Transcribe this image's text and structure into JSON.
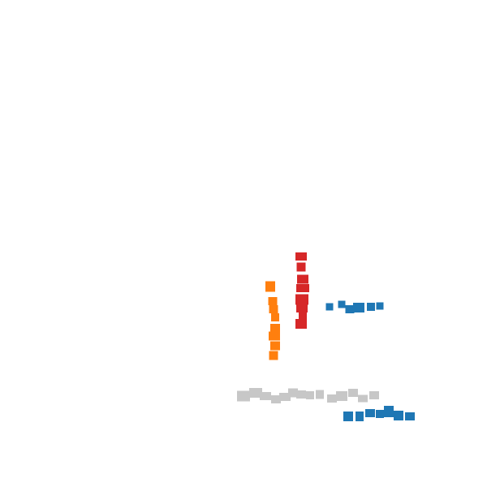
{
  "colors": {
    "background": "#ffffff",
    "red": "#d62728",
    "orange": "#ff7f0e",
    "blue": "#1f77b4",
    "gray": "#c7c7c7"
  },
  "groups": [
    {
      "name": "red-vertical-cluster",
      "color_key": "red"
    },
    {
      "name": "orange-vertical-cluster",
      "color_key": "orange"
    },
    {
      "name": "blue-upper-cluster",
      "color_key": "blue"
    },
    {
      "name": "gray-horizontal-cluster",
      "color_key": "gray"
    },
    {
      "name": "blue-lower-cluster",
      "color_key": "blue"
    }
  ]
}
